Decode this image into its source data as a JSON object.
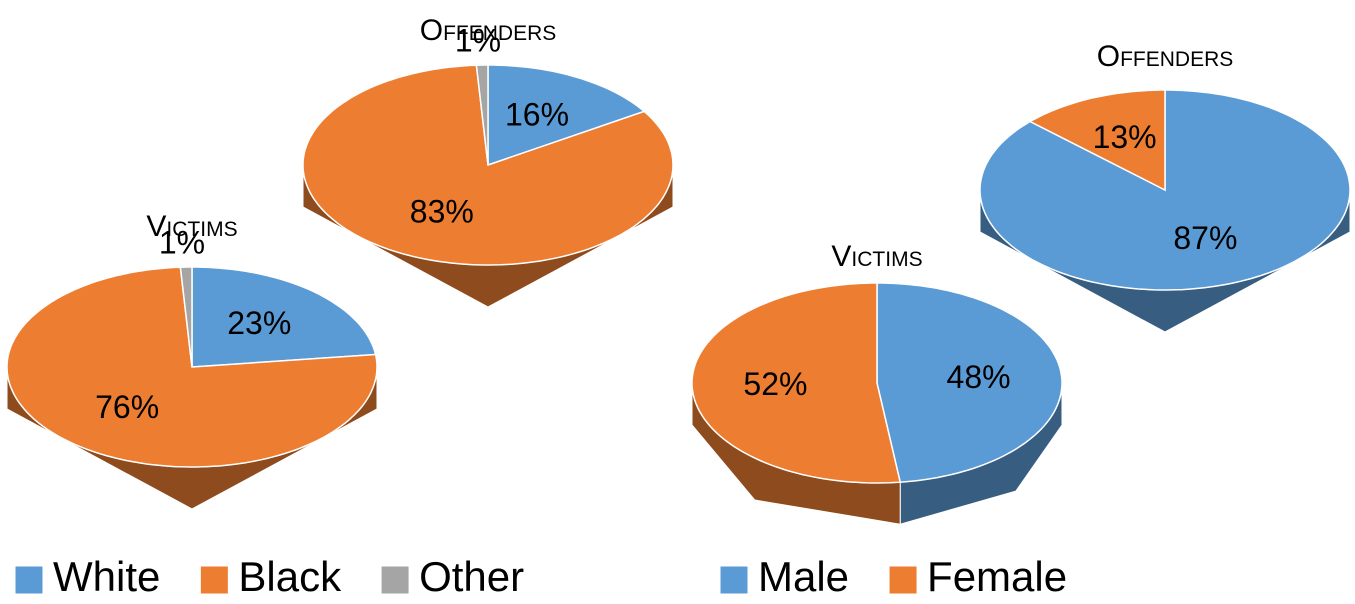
{
  "chart_data": [
    {
      "type": "pie",
      "title": "Victims",
      "categories": [
        "White",
        "Black",
        "Other"
      ],
      "values": [
        23,
        76,
        1
      ],
      "value_labels": [
        "23%",
        "76%",
        "1%"
      ],
      "colors": [
        "#5b9bd5",
        "#ed7d31",
        "#a5a5a5"
      ],
      "legend": "bottom"
    },
    {
      "type": "pie",
      "title": "Offenders",
      "categories": [
        "White",
        "Black",
        "Other"
      ],
      "values": [
        16,
        83,
        1
      ],
      "value_labels": [
        "16%",
        "83%",
        "1%"
      ],
      "colors": [
        "#5b9bd5",
        "#ed7d31",
        "#a5a5a5"
      ]
    },
    {
      "type": "pie",
      "title": "Victims",
      "categories": [
        "Male",
        "Female"
      ],
      "values": [
        48,
        52
      ],
      "value_labels": [
        "48%",
        "52%"
      ],
      "colors": [
        "#5b9bd5",
        "#ed7d31"
      ],
      "legend": "bottom"
    },
    {
      "type": "pie",
      "title": "Offenders",
      "categories": [
        "Male",
        "Female"
      ],
      "values": [
        87,
        13
      ],
      "value_labels": [
        "87%",
        "13%"
      ],
      "colors": [
        "#5b9bd5",
        "#ed7d31"
      ]
    }
  ]
}
